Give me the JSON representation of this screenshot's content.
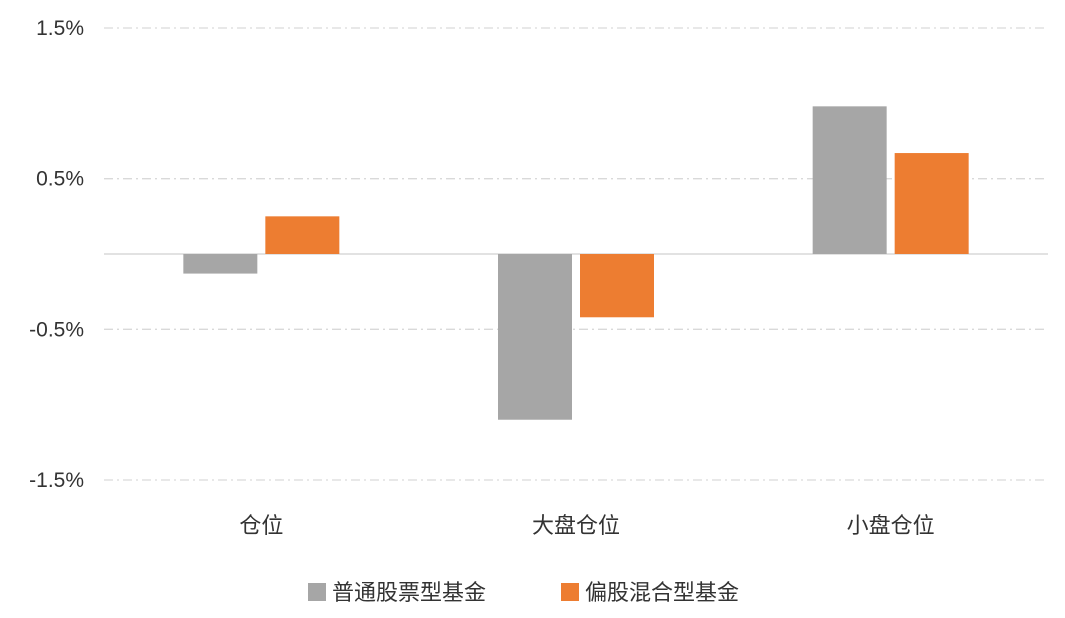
{
  "chart_data": {
    "type": "bar",
    "categories": [
      "仓位",
      "大盘仓位",
      "小盘仓位"
    ],
    "series": [
      {
        "name": "普通股票型基金",
        "values": [
          -0.13,
          -1.1,
          0.98
        ],
        "color": "#a6a6a6"
      },
      {
        "name": "偏股混合型基金",
        "values": [
          0.25,
          -0.42,
          0.67
        ],
        "color": "#ed7d31"
      }
    ],
    "ylim": [
      -1.5,
      1.5
    ],
    "yticks": [
      1.5,
      0.5,
      -0.5,
      -1.5
    ],
    "ytick_labels": [
      "1.5%",
      "0.5%",
      "-0.5%",
      "-1.5%"
    ],
    "gridlines": "dashed",
    "legend_position": "bottom-center"
  }
}
